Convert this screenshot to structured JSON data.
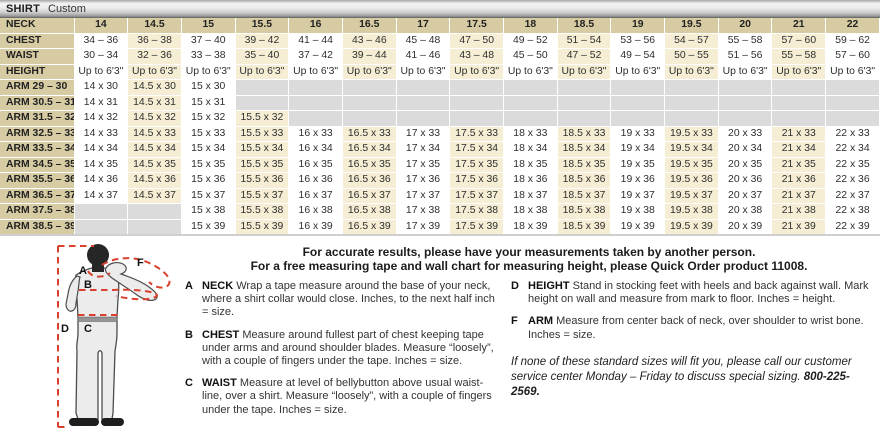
{
  "title": {
    "brand": "SHIRT",
    "variant": "Custom"
  },
  "colors": {
    "header_tan": "#d6cba2",
    "stripe_cream": "#f5eed4",
    "empty_gray": "#dbdbdb",
    "measure_red": "#d9412e"
  },
  "table": {
    "corner_label": "NECK",
    "neck_sizes": [
      "14",
      "14.5",
      "15",
      "15.5",
      "16",
      "16.5",
      "17",
      "17.5",
      "18",
      "18.5",
      "19",
      "19.5",
      "20",
      "21",
      "22"
    ],
    "rows": [
      {
        "label": "CHEST",
        "values": [
          "34 – 36",
          "36 – 38",
          "37 – 40",
          "39 – 42",
          "41 – 44",
          "43 – 46",
          "45 – 48",
          "47 – 50",
          "49 – 52",
          "51 – 54",
          "53 – 56",
          "54 – 57",
          "55 – 58",
          "57 – 60",
          "59 – 62"
        ]
      },
      {
        "label": "WAIST",
        "values": [
          "30 – 34",
          "32 – 36",
          "33 – 38",
          "35 – 40",
          "37 – 42",
          "39 – 44",
          "41 – 46",
          "43 – 48",
          "45 – 50",
          "47 – 52",
          "49 – 54",
          "50 – 55",
          "51 – 56",
          "55 – 58",
          "57 – 60"
        ]
      },
      {
        "label": "HEIGHT",
        "values": [
          "Up to 6'3\"",
          "Up to 6'3\"",
          "Up to 6'3\"",
          "Up to 6'3\"",
          "Up to 6'3\"",
          "Up to 6'3\"",
          "Up to 6'3\"",
          "Up to 6'3\"",
          "Up to 6'3\"",
          "Up to 6'3\"",
          "Up to 6'3\"",
          "Up to 6'3\"",
          "Up to 6'3\"",
          "Up to 6'3\"",
          "Up to 6'3\""
        ]
      },
      {
        "label": "ARM 29 – 30",
        "values": [
          "14 x 30",
          "14.5 x 30",
          "15 x 30",
          "",
          "",
          "",
          "",
          "",
          "",
          "",
          "",
          "",
          "",
          "",
          ""
        ]
      },
      {
        "label": "ARM 30.5 – 31",
        "values": [
          "14 x 31",
          "14.5 x 31",
          "15 x 31",
          "",
          "",
          "",
          "",
          "",
          "",
          "",
          "",
          "",
          "",
          "",
          ""
        ]
      },
      {
        "label": "ARM 31.5 – 32",
        "values": [
          "14 x 32",
          "14.5 x 32",
          "15 x 32",
          "15.5 x 32",
          "",
          "",
          "",
          "",
          "",
          "",
          "",
          "",
          "",
          "",
          ""
        ]
      },
      {
        "label": "ARM 32.5 – 33",
        "values": [
          "14 x 33",
          "14.5 x 33",
          "15 x 33",
          "15.5 x 33",
          "16 x 33",
          "16.5 x 33",
          "17 x 33",
          "17.5 x 33",
          "18 x 33",
          "18.5 x 33",
          "19 x 33",
          "19.5 x 33",
          "20 x 33",
          "21 x 33",
          "22 x 33"
        ]
      },
      {
        "label": "ARM 33.5 – 34",
        "values": [
          "14 x 34",
          "14.5 x 34",
          "15 x 34",
          "15.5 x 34",
          "16 x 34",
          "16.5 x 34",
          "17 x 34",
          "17.5 x 34",
          "18 x 34",
          "18.5 x 34",
          "19 x 34",
          "19.5 x 34",
          "20 x 34",
          "21 x 34",
          "22 x 34"
        ]
      },
      {
        "label": "ARM 34.5 – 35",
        "values": [
          "14 x 35",
          "14.5 x 35",
          "15 x 35",
          "15.5 x 35",
          "16 x 35",
          "16.5 x 35",
          "17 x 35",
          "17.5 x 35",
          "18 x 35",
          "18.5 x 35",
          "19 x 35",
          "19.5 x 35",
          "20 x 35",
          "21 x 35",
          "22 x 35"
        ]
      },
      {
        "label": "ARM 35.5 – 36",
        "values": [
          "14 x 36",
          "14.5 x 36",
          "15 x 36",
          "15.5 x 36",
          "16 x 36",
          "16.5 x 36",
          "17 x 36",
          "17.5 x 36",
          "18 x 36",
          "18.5 x 36",
          "19 x 36",
          "19.5 x 36",
          "20 x 36",
          "21 x 36",
          "22 x 36"
        ]
      },
      {
        "label": "ARM 36.5 – 37",
        "values": [
          "14 x 37",
          "14.5 x 37",
          "15 x 37",
          "15.5 x 37",
          "16 x 37",
          "16.5 x 37",
          "17 x 37",
          "17.5 x 37",
          "18 x 37",
          "18.5 x 37",
          "19 x 37",
          "19.5 x 37",
          "20 x 37",
          "21 x 37",
          "22 x 37"
        ]
      },
      {
        "label": "ARM 37.5 – 38",
        "values": [
          "",
          "",
          "15 x 38",
          "15.5 x 38",
          "16 x 38",
          "16.5 x 38",
          "17 x 38",
          "17.5 x 38",
          "18 x 38",
          "18.5 x 38",
          "19 x 38",
          "19.5 x 38",
          "20 x 38",
          "21 x 38",
          "22 x 38"
        ]
      },
      {
        "label": "ARM 38.5 – 39",
        "values": [
          "",
          "",
          "15 x 39",
          "15.5 x 39",
          "16 x 39",
          "16.5 x 39",
          "17 x 39",
          "17.5 x 39",
          "18 x 39",
          "18.5 x 39",
          "19 x 39",
          "19.5 x 39",
          "20 x 39",
          "21 x 39",
          "22 x 39"
        ]
      }
    ]
  },
  "intro": {
    "line1": "For accurate results, please have your measurements taken by another person.",
    "line2": "For a free measuring tape and wall chart for measuring height, please Quick Order product 11008."
  },
  "instructions": {
    "left": [
      {
        "letter": "A",
        "term": "NECK",
        "text": "Wrap a tape measure around the base of your neck, where a shirt collar would close. Inches, to the next half inch = size."
      },
      {
        "letter": "B",
        "term": "CHEST",
        "text": "Measure around fullest part of chest keeping tape under arms and around shoulder blades. Measure “loosely”, with a couple of fingers under the tape. Inches = size."
      },
      {
        "letter": "C",
        "term": "WAIST",
        "text": "Measure at level of bellybutton above usual waist-line, over a shirt. Measure “loosely”, with a couple of fingers under the tape. Inches = size."
      }
    ],
    "right": [
      {
        "letter": "D",
        "term": "HEIGHT",
        "text": "Stand in stocking feet with heels and back against wall. Mark height on wall and measure from mark to floor. Inches = height."
      },
      {
        "letter": "F",
        "term": "ARM",
        "text": "Measure from center back of neck, over shoulder to wrist bone. Inches = size."
      }
    ],
    "note": {
      "text": "If none of these standard sizes will fit you, please call our customer service center Monday – Friday to discuss special sizing. ",
      "phone": "800-225-2569."
    }
  },
  "figure": {
    "labels": {
      "a": "A",
      "b": "B",
      "c": "C",
      "d": "D",
      "f": "F"
    }
  }
}
